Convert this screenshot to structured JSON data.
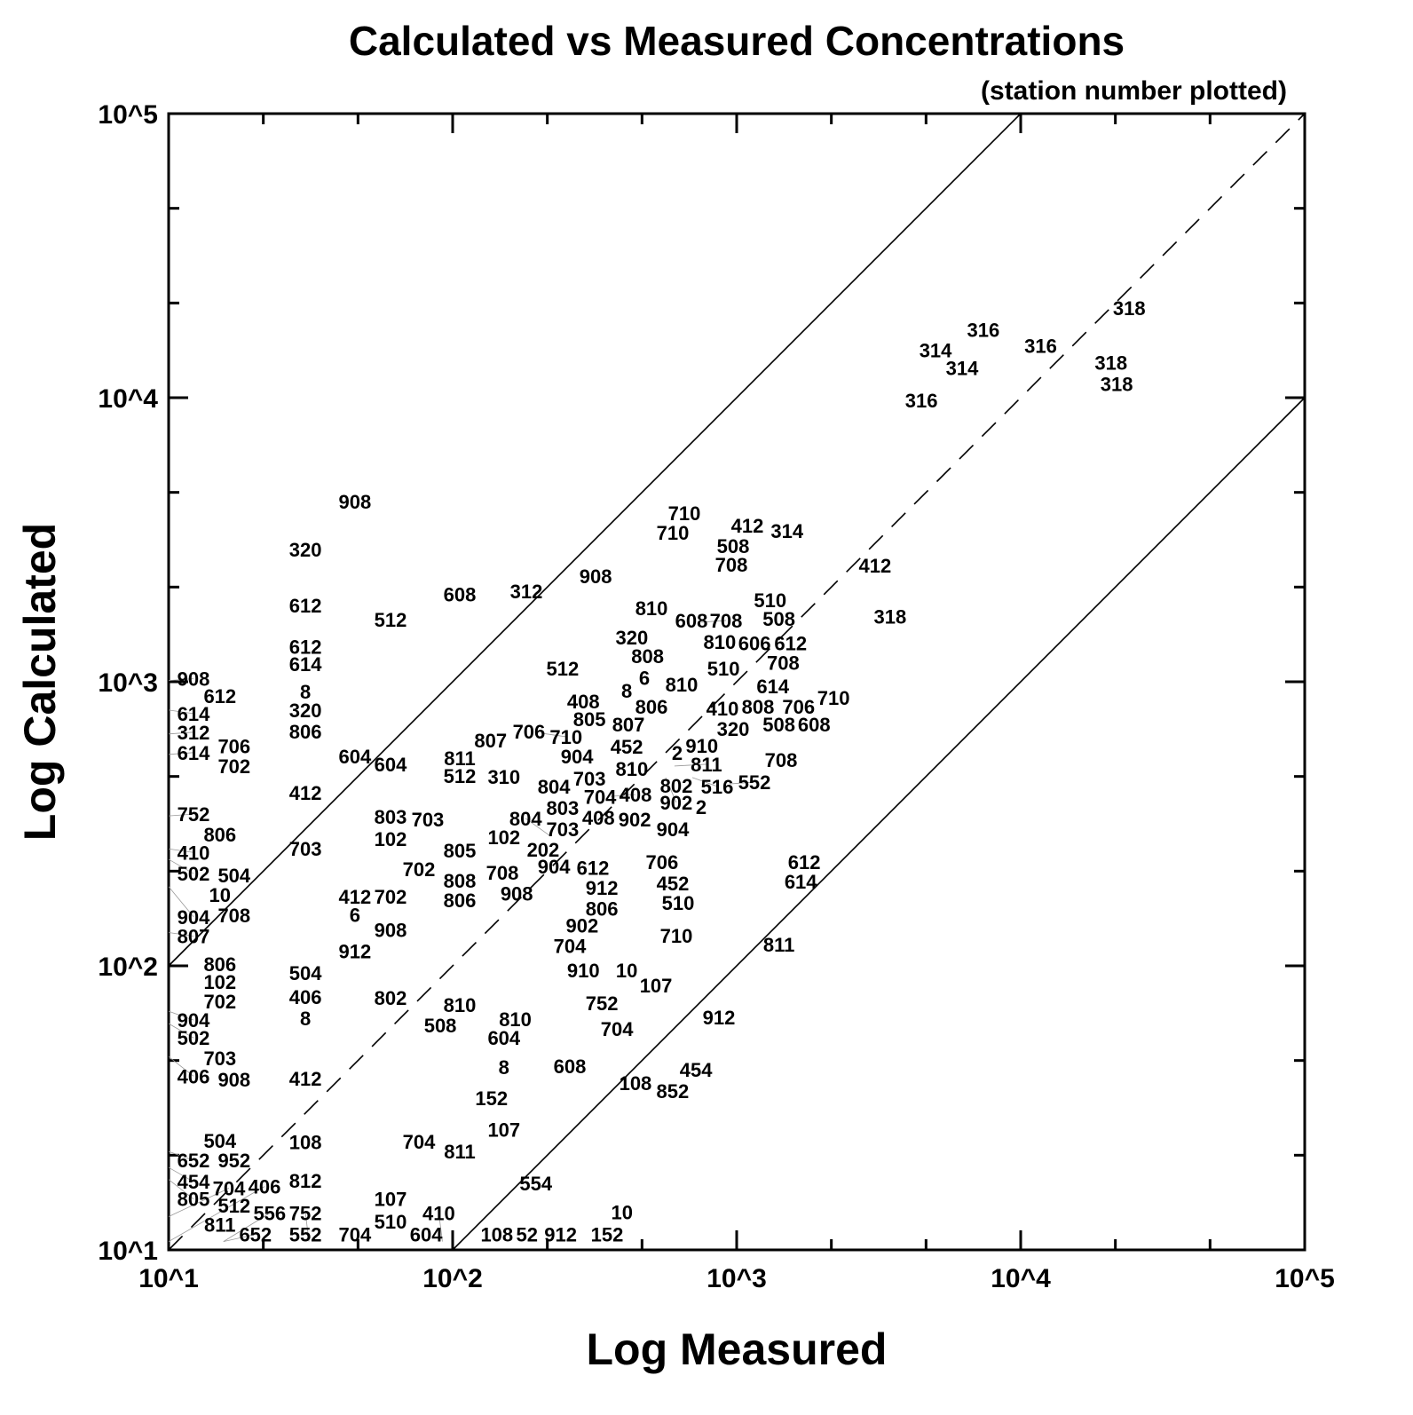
{
  "chart_data": {
    "type": "scatter",
    "title": "Calculated vs Measured Concentrations",
    "subtitle": "(station number plotted)",
    "xlabel": "Log Measured",
    "ylabel": "Log Calculated",
    "xscale": "log",
    "yscale": "log",
    "xlim": [
      10,
      100000
    ],
    "ylim": [
      10,
      100000
    ],
    "xticks": [
      "10^1",
      "10^2",
      "10^3",
      "10^4",
      "10^5"
    ],
    "yticks": [
      "10^1",
      "10^2",
      "10^3",
      "10^4",
      "10^5"
    ],
    "grid": false,
    "reference_lines": [
      {
        "relation": "y = 10x",
        "style": "solid"
      },
      {
        "relation": "y = x",
        "style": "dashed"
      },
      {
        "relation": "y = x/10",
        "style": "solid"
      }
    ],
    "points": [
      [
        "318",
        24800,
        20400
      ],
      [
        "316",
        7600,
        17100
      ],
      [
        "314",
        5160,
        14500
      ],
      [
        "316",
        12100,
        15000
      ],
      [
        "314",
        6400,
        13100
      ],
      [
        "318",
        21400,
        13100
      ],
      [
        "318",
        22400,
        13100
      ],
      [
        "316",
        4600,
        9650
      ],
      [
        "908",
        46.6,
        4250
      ],
      [
        "710",
        673,
        3870
      ],
      [
        "710",
        613,
        3600
      ],
      [
        "412",
        1122,
        3500
      ],
      [
        "314",
        1380,
        3350
      ],
      [
        "508",
        1000,
        3100
      ],
      [
        "708",
        986,
        2780
      ],
      [
        "320",
        31.2,
        2880
      ],
      [
        "412",
        3160,
        2530
      ],
      [
        "908",
        328,
        2320
      ],
      [
        "608",
        109,
        2000
      ],
      [
        "312",
        187,
        2050
      ],
      [
        "612",
        31.2,
        1830
      ],
      [
        "810",
        516,
        1790
      ],
      [
        "510",
        1350,
        1910
      ],
      [
        "318",
        3570,
        1670
      ],
      [
        "512",
        62.2,
        1630
      ],
      [
        "508",
        1450,
        1640
      ],
      [
        "608",
        673,
        1620
      ],
      [
        "708",
        750,
        1620
      ],
      [
        "810",
        897,
        1620
      ],
      [
        "320",
        440,
        1410
      ],
      [
        "612",
        31.2,
        1310
      ],
      [
        "614",
        31.2,
        1190
      ],
      [
        "808",
        500,
        1270
      ],
      [
        "6",
        487,
        1110
      ],
      [
        "512",
        251,
        1100
      ],
      [
        "510",
        925,
        1100
      ],
      [
        "908",
        10,
        1010
      ],
      [
        "606",
        1060,
        1350
      ],
      [
        "612",
        1420,
        1350
      ],
      [
        "708",
        1500,
        1200
      ],
      [
        "810",
        659,
        964
      ],
      [
        "612",
        15.6,
        880
      ],
      [
        "8",
        31.2,
        910
      ],
      [
        "614",
        10,
        795
      ],
      [
        "320",
        31.2,
        783
      ],
      [
        "806",
        31.2,
        688
      ],
      [
        "312",
        10,
        655
      ],
      [
        "614",
        10,
        555
      ],
      [
        "706",
        15.6,
        584
      ],
      [
        "702",
        15.6,
        542
      ],
      [
        "408",
        297,
        841
      ],
      [
        "8",
        422,
        917
      ],
      [
        "806",
        487,
        841
      ],
      [
        "805",
        312,
        729
      ],
      [
        "807",
        428,
        729
      ],
      [
        "452",
        422,
        664
      ],
      [
        "410",
        917,
        795
      ],
      [
        "808",
        1155,
        806
      ],
      [
        "706",
        1430,
        806
      ],
      [
        "614",
        1380,
        871
      ],
      [
        "710",
        2130,
        866
      ],
      [
        "320",
        1000,
        734
      ],
      [
        "508",
        1450,
        698
      ],
      [
        "608",
        1820,
        729
      ],
      [
        "807",
        140,
        613
      ],
      [
        "706",
        191,
        659
      ],
      [
        "710",
        205,
        659
      ],
      [
        "904",
        282,
        587
      ],
      [
        "703",
        312,
        535
      ],
      [
        "810",
        440,
        555
      ],
      [
        "910",
        776,
        587
      ],
      [
        "2",
        673,
        555
      ],
      [
        "811",
        109,
        555
      ],
      [
        "512",
        109,
        480
      ],
      [
        "604",
        46.6,
        538
      ],
      [
        "604",
        62.2,
        505
      ],
      [
        "310",
        156,
        456
      ],
      [
        "804",
        234,
        422
      ],
      [
        "704",
        340,
        406
      ],
      [
        "408",
        360,
        395
      ],
      [
        "802",
        531,
        425
      ],
      [
        "902",
        562,
        460
      ],
      [
        "811",
        604,
        505
      ],
      [
        "516",
        698,
        460
      ],
      [
        "552",
        944,
        437
      ],
      [
        "708",
        1475,
        523
      ],
      [
        "2",
        688,
        373
      ],
      [
        "412",
        31.2,
        401
      ],
      [
        "803",
        251,
        371
      ],
      [
        "408",
        299,
        328
      ],
      [
        "902",
        425,
        323
      ],
      [
        "904",
        613,
        299
      ],
      [
        "703",
        251,
        299
      ],
      [
        "752",
        10,
        337
      ],
      [
        "806",
        15.6,
        299
      ],
      [
        "803",
        62.2,
        330
      ],
      [
        "703",
        79.4,
        323
      ],
      [
        "102",
        62.2,
        301
      ],
      [
        "102",
        156,
        280
      ],
      [
        "202",
        191,
        276
      ],
      [
        "804",
        221,
        286
      ],
      [
        "703",
        31.2,
        255
      ],
      [
        "805",
        109,
        251
      ],
      [
        "410",
        10,
        258
      ],
      [
        "502",
        10,
        237
      ],
      [
        "702",
        78.3,
        216
      ],
      [
        "904",
        234,
        230
      ],
      [
        "612",
        286,
        218
      ],
      [
        "912",
        345,
        211
      ],
      [
        "706",
        562,
        229
      ],
      [
        "452",
        613,
        210
      ],
      [
        "510",
        640,
        195
      ],
      [
        "612",
        1780,
        229
      ],
      [
        "614",
        1730,
        204
      ],
      [
        "708",
        154,
        210
      ],
      [
        "908",
        173,
        202
      ],
      [
        "504",
        15.6,
        205
      ],
      [
        "10",
        15.6,
        191
      ],
      [
        "904",
        10,
        190
      ],
      [
        "808",
        109,
        197
      ],
      [
        "806",
        109,
        183
      ],
      [
        "412",
        46.6,
        173
      ],
      [
        "702",
        62.2,
        173
      ],
      [
        "806",
        345,
        171
      ],
      [
        "708",
        15.6,
        162
      ],
      [
        "6",
        46.6,
        149
      ],
      [
        "902",
        294,
        149
      ],
      [
        "908",
        62.2,
        132
      ],
      [
        "704",
        266,
        121
      ],
      [
        "710",
        631,
        126
      ],
      [
        "811",
        1450,
        117
      ],
      [
        "912",
        46.6,
        111
      ],
      [
        "807",
        10,
        131
      ],
      [
        "806",
        15.6,
        100
      ],
      [
        "102",
        15.6,
        94.4
      ],
      [
        "504",
        31.2,
        93.1
      ],
      [
        "910",
        297,
        95
      ],
      [
        "10",
        422,
        95
      ],
      [
        "107",
        505,
        84.1
      ],
      [
        "702",
        15.6,
        80.5
      ],
      [
        "406",
        31.2,
        76.6
      ],
      [
        "802",
        62.2,
        76
      ],
      [
        "810",
        109,
        71.8
      ],
      [
        "508",
        93.1,
        66.4
      ],
      [
        "752",
        345,
        72.9
      ],
      [
        "810",
        171,
        63.9
      ],
      [
        "912",
        891,
        64.9
      ],
      [
        "904",
        10,
        69.2
      ],
      [
        "502",
        10,
        62.6
      ],
      [
        "8",
        31.2,
        64.4
      ],
      [
        "704",
        390,
        59.2
      ],
      [
        "604",
        156,
        55.1
      ],
      [
        "703",
        15.6,
        46.6
      ],
      [
        "406",
        10,
        47.9
      ],
      [
        "908",
        15.6,
        39.3
      ],
      [
        "412",
        31.2,
        39.5
      ],
      [
        "8",
        156,
        43.4
      ],
      [
        "608",
        266,
        43.7
      ],
      [
        "454",
        740,
        42.5
      ],
      [
        "108",
        453,
        38.1
      ],
      [
        "852",
        546,
        35.7
      ],
      [
        "152",
        141,
        33.7
      ],
      [
        "107",
        156,
        26.1
      ],
      [
        "504",
        15.6,
        23.9
      ],
      [
        "108",
        31.2,
        23.6
      ],
      [
        "704",
        78.3,
        23.7
      ],
      [
        "811",
        109,
        21.9
      ],
      [
        "652",
        10,
        22.2
      ],
      [
        "952",
        15.6,
        20.4
      ],
      [
        "454",
        10,
        19.5
      ],
      [
        "805",
        10,
        17.7
      ],
      [
        "812",
        31.2,
        17.3
      ],
      [
        "554",
        202,
        16.9
      ],
      [
        "107",
        62.2,
        14.9
      ],
      [
        "512",
        15.6,
        14.1
      ],
      [
        "811",
        15.6,
        13.2
      ],
      [
        "704",
        10,
        13.1
      ],
      [
        "10",
        406,
        13.4
      ],
      [
        "510",
        62.2,
        12.4
      ],
      [
        "52",
        188,
        11.2
      ],
      [
        "108",
        156,
        10.7
      ],
      [
        "912",
        247,
        10.7
      ],
      [
        "152",
        360,
        10.7
      ],
      [
        "704",
        46.6,
        10.7
      ],
      [
        "604",
        74,
        10.7
      ],
      [
        "410",
        92,
        10.7
      ],
      [
        "552",
        31.2,
        10.7
      ],
      [
        "752",
        31.2,
        10.7
      ],
      [
        "652",
        15.6,
        10.7
      ],
      [
        "556",
        15.6,
        10.7
      ],
      [
        "406",
        10,
        10.7
      ]
    ]
  }
}
